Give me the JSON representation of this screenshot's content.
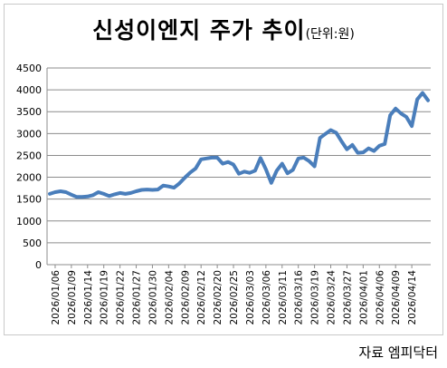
{
  "chart_data": {
    "type": "line",
    "title": "신성이엔지 주가 추이",
    "unit": "(단위:원)",
    "source": "자료 엠피닥터",
    "ylim": [
      0,
      4500
    ],
    "yticks": [
      0,
      500,
      1000,
      1500,
      2000,
      2500,
      3000,
      3500,
      4000,
      4500
    ],
    "grid": true,
    "legend": "none",
    "line_color": "#4a7ebb",
    "x_tick_labels": [
      "2026/01/06",
      "2026/01/09",
      "2026/01/14",
      "2026/01/19",
      "2026/01/22",
      "2026/01/27",
      "2026/01/30",
      "2026/02/04",
      "2026/02/09",
      "2026/02/12",
      "2026/02/20",
      "2026/02/25",
      "2026/03/03",
      "2026/03/06",
      "2026/03/11",
      "2026/03/16",
      "2026/03/19",
      "2026/03/24",
      "2026/03/27",
      "2026/04/01",
      "2026/04/06",
      "2026/04/09",
      "2026/04/14"
    ],
    "x_tick_step": 3,
    "series": [
      {
        "values": [
          1620,
          1660,
          1680,
          1660,
          1600,
          1550,
          1550,
          1560,
          1590,
          1660,
          1620,
          1570,
          1610,
          1640,
          1620,
          1640,
          1680,
          1710,
          1720,
          1710,
          1720,
          1810,
          1790,
          1760,
          1860,
          1990,
          2110,
          2200,
          2410,
          2430,
          2450,
          2450,
          2310,
          2350,
          2290,
          2080,
          2130,
          2100,
          2150,
          2440,
          2180,
          1870,
          2150,
          2310,
          2090,
          2170,
          2430,
          2450,
          2370,
          2250,
          2900,
          2990,
          3080,
          3020,
          2820,
          2640,
          2740,
          2560,
          2570,
          2660,
          2600,
          2720,
          2760,
          3420,
          3570,
          3460,
          3380,
          3170,
          3780,
          3930,
          3760
        ]
      }
    ]
  }
}
